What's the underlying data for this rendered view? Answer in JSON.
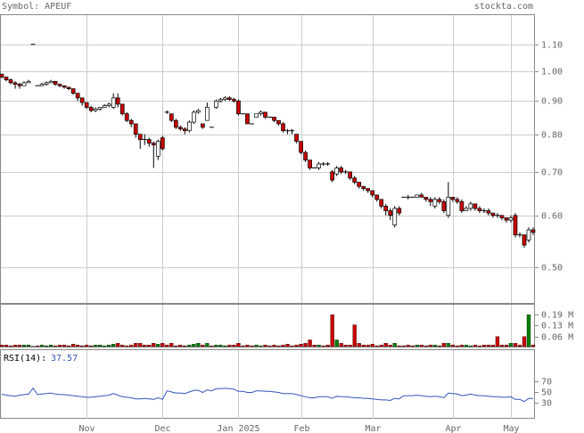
{
  "header": {
    "symbol": "Symbol: APEUF",
    "source": "stockta.com"
  },
  "chart_data": [
    {
      "type": "candlestick",
      "log": true,
      "grid": true,
      "up_color": "#ffffff",
      "down_color": "#cc0000",
      "ylim": [
        0.44,
        1.22
      ],
      "yticks": [
        {
          "value": 0.5,
          "label": "0.50"
        },
        {
          "value": 0.6,
          "label": "0.60"
        },
        {
          "value": 0.7,
          "label": "0.70"
        },
        {
          "value": 0.8,
          "label": "0.80"
        },
        {
          "value": 0.9,
          "label": "0.90"
        },
        {
          "value": 1.0,
          "label": "1.00"
        },
        {
          "value": 1.1,
          "label": "1.10"
        }
      ],
      "open": [
        0.99,
        0.98,
        0.97,
        0.96,
        0.955,
        0.95,
        0.96,
        1.1,
        0.95,
        0.95,
        0.955,
        0.96,
        0.965,
        0.955,
        0.95,
        0.945,
        0.94,
        0.925,
        0.91,
        0.895,
        0.88,
        0.87,
        0.875,
        0.88,
        0.885,
        0.88,
        0.91,
        0.89,
        0.86,
        0.84,
        0.83,
        0.8,
        0.785,
        0.785,
        0.775,
        0.74,
        0.79,
        0.865,
        0.86,
        0.84,
        0.82,
        0.815,
        0.81,
        0.835,
        0.865,
        0.83,
        0.84,
        0.82,
        0.88,
        0.9,
        0.905,
        0.91,
        0.905,
        0.9,
        0.86,
        0.86,
        0.83,
        0.85,
        0.86,
        0.865,
        0.85,
        0.85,
        0.84,
        0.83,
        0.81,
        0.81,
        0.8,
        0.78,
        0.75,
        0.73,
        0.71,
        0.71,
        0.72,
        0.72,
        0.7,
        0.695,
        0.71,
        0.7,
        0.7,
        0.685,
        0.675,
        0.665,
        0.66,
        0.655,
        0.645,
        0.635,
        0.62,
        0.61,
        0.58,
        0.615,
        0.64,
        0.64,
        0.64,
        0.64,
        0.645,
        0.64,
        0.635,
        0.62,
        0.635,
        0.63,
        0.6,
        0.64,
        0.635,
        0.63,
        0.61,
        0.615,
        0.625,
        0.615,
        0.61,
        0.61,
        0.605,
        0.6,
        0.6,
        0.595,
        0.59,
        0.6,
        0.56,
        0.56,
        0.55,
        0.57
      ],
      "high": [
        0.99,
        0.98,
        0.975,
        0.965,
        0.96,
        0.965,
        0.97,
        1.1,
        0.95,
        0.96,
        0.965,
        0.97,
        0.965,
        0.955,
        0.95,
        0.945,
        0.94,
        0.925,
        0.91,
        0.895,
        0.885,
        0.88,
        0.88,
        0.89,
        0.895,
        0.925,
        0.925,
        0.89,
        0.865,
        0.845,
        0.83,
        0.8,
        0.8,
        0.79,
        0.78,
        0.785,
        0.795,
        0.87,
        0.86,
        0.845,
        0.825,
        0.82,
        0.84,
        0.87,
        0.875,
        0.83,
        0.895,
        0.82,
        0.905,
        0.91,
        0.915,
        0.915,
        0.91,
        0.905,
        0.86,
        0.86,
        0.83,
        0.86,
        0.87,
        0.865,
        0.85,
        0.85,
        0.84,
        0.835,
        0.815,
        0.815,
        0.8,
        0.78,
        0.755,
        0.73,
        0.71,
        0.725,
        0.725,
        0.725,
        0.705,
        0.715,
        0.715,
        0.705,
        0.7,
        0.69,
        0.675,
        0.665,
        0.66,
        0.655,
        0.645,
        0.635,
        0.625,
        0.615,
        0.62,
        0.62,
        0.64,
        0.645,
        0.64,
        0.645,
        0.65,
        0.64,
        0.64,
        0.64,
        0.64,
        0.635,
        0.675,
        0.64,
        0.64,
        0.635,
        0.62,
        0.63,
        0.625,
        0.62,
        0.615,
        0.615,
        0.605,
        0.605,
        0.6,
        0.595,
        0.6,
        0.605,
        0.565,
        0.56,
        0.575,
        0.575
      ],
      "low": [
        0.975,
        0.965,
        0.955,
        0.94,
        0.94,
        0.95,
        0.96,
        1.1,
        0.95,
        0.95,
        0.95,
        0.96,
        0.95,
        0.945,
        0.94,
        0.935,
        0.92,
        0.9,
        0.885,
        0.875,
        0.865,
        0.865,
        0.87,
        0.88,
        0.88,
        0.875,
        0.88,
        0.855,
        0.835,
        0.82,
        0.79,
        0.76,
        0.77,
        0.765,
        0.71,
        0.73,
        0.755,
        0.86,
        0.835,
        0.815,
        0.81,
        0.8,
        0.805,
        0.83,
        0.86,
        0.815,
        0.84,
        0.82,
        0.875,
        0.895,
        0.9,
        0.9,
        0.895,
        0.855,
        0.86,
        0.83,
        0.83,
        0.85,
        0.855,
        0.845,
        0.85,
        0.835,
        0.825,
        0.805,
        0.8,
        0.8,
        0.775,
        0.745,
        0.725,
        0.705,
        0.71,
        0.705,
        0.715,
        0.715,
        0.675,
        0.69,
        0.695,
        0.695,
        0.68,
        0.67,
        0.66,
        0.655,
        0.65,
        0.64,
        0.63,
        0.615,
        0.6,
        0.59,
        0.575,
        0.6,
        0.64,
        0.635,
        0.64,
        0.64,
        0.64,
        0.63,
        0.62,
        0.615,
        0.625,
        0.605,
        0.595,
        0.63,
        0.625,
        0.605,
        0.61,
        0.61,
        0.61,
        0.605,
        0.605,
        0.6,
        0.595,
        0.595,
        0.59,
        0.585,
        0.585,
        0.555,
        0.555,
        0.535,
        0.545,
        0.56
      ],
      "close": [
        0.98,
        0.97,
        0.96,
        0.955,
        0.95,
        0.96,
        0.965,
        1.1,
        0.95,
        0.955,
        0.96,
        0.965,
        0.955,
        0.95,
        0.945,
        0.94,
        0.925,
        0.91,
        0.895,
        0.88,
        0.87,
        0.875,
        0.88,
        0.885,
        0.89,
        0.91,
        0.89,
        0.86,
        0.84,
        0.83,
        0.8,
        0.785,
        0.785,
        0.775,
        0.77,
        0.78,
        0.76,
        0.865,
        0.84,
        0.82,
        0.815,
        0.81,
        0.835,
        0.865,
        0.87,
        0.82,
        0.88,
        0.82,
        0.9,
        0.905,
        0.91,
        0.905,
        0.9,
        0.86,
        0.86,
        0.83,
        0.83,
        0.86,
        0.865,
        0.85,
        0.85,
        0.84,
        0.83,
        0.81,
        0.81,
        0.81,
        0.78,
        0.75,
        0.73,
        0.71,
        0.71,
        0.72,
        0.72,
        0.72,
        0.68,
        0.71,
        0.7,
        0.7,
        0.685,
        0.675,
        0.665,
        0.66,
        0.655,
        0.645,
        0.635,
        0.62,
        0.61,
        0.6,
        0.615,
        0.605,
        0.64,
        0.64,
        0.64,
        0.645,
        0.64,
        0.635,
        0.63,
        0.635,
        0.63,
        0.61,
        0.64,
        0.635,
        0.63,
        0.61,
        0.615,
        0.625,
        0.615,
        0.61,
        0.61,
        0.605,
        0.6,
        0.6,
        0.595,
        0.59,
        0.595,
        0.56,
        0.56,
        0.54,
        0.57,
        0.565
      ]
    },
    {
      "type": "bar",
      "up_color": "#008000",
      "down_color": "#cc0000",
      "ylim": [
        0,
        0.25
      ],
      "yticks": [
        {
          "value": 0.06,
          "label": "0.06 M"
        },
        {
          "value": 0.13,
          "label": "0.13 M"
        },
        {
          "value": 0.19,
          "label": "0.19 M"
        }
      ],
      "values": [
        0.01,
        0.01,
        0.005,
        0.01,
        0.01,
        0.01,
        0.01,
        0.002,
        0.005,
        0.01,
        0.005,
        0.01,
        0.005,
        0.01,
        0.01,
        0.005,
        0.015,
        0.01,
        0.005,
        0.01,
        0.005,
        0.01,
        0.01,
        0.005,
        0.01,
        0.015,
        0.02,
        0.01,
        0.005,
        0.01,
        0.02,
        0.02,
        0.01,
        0.01,
        0.02,
        0.015,
        0.02,
        0.01,
        0.02,
        0.005,
        0.01,
        0.005,
        0.01,
        0.015,
        0.02,
        0.01,
        0.02,
        0.005,
        0.01,
        0.01,
        0.005,
        0.01,
        0.01,
        0.02,
        0.005,
        0.01,
        0.005,
        0.01,
        0.005,
        0.01,
        0.005,
        0.01,
        0.005,
        0.01,
        0.015,
        0.005,
        0.01,
        0.015,
        0.02,
        0.04,
        0.01,
        0.01,
        0.005,
        0.01,
        0.19,
        0.04,
        0.02,
        0.01,
        0.01,
        0.13,
        0.02,
        0.01,
        0.01,
        0.015,
        0.005,
        0.01,
        0.02,
        0.01,
        0.02,
        0.005,
        0.005,
        0.01,
        0.005,
        0.01,
        0.01,
        0.005,
        0.01,
        0.01,
        0.005,
        0.02,
        0.02,
        0.01,
        0.005,
        0.01,
        0.01,
        0.005,
        0.01,
        0.005,
        0.01,
        0.01,
        0.01,
        0.06,
        0.01,
        0.01,
        0.02,
        0.02,
        0.01,
        0.06,
        0.19,
        0.01
      ]
    },
    {
      "type": "line",
      "label": "RSI(14):",
      "color": "#3355bb",
      "ylim": [
        0,
        128
      ],
      "yticks": [
        30,
        50,
        70
      ],
      "values": [
        46,
        44,
        43,
        42,
        44,
        45,
        46,
        57,
        45,
        46,
        47,
        48,
        46,
        45,
        45,
        44,
        43,
        42,
        41,
        40,
        40,
        41,
        42,
        43,
        44,
        47,
        44,
        41,
        40,
        39,
        37,
        37,
        38,
        37,
        36,
        39,
        36,
        52,
        50,
        48,
        48,
        47,
        50,
        53,
        53,
        49,
        54,
        52,
        56,
        56,
        57,
        56,
        55,
        51,
        51,
        49,
        49,
        52,
        52,
        51,
        51,
        50,
        49,
        47,
        47,
        47,
        45,
        43,
        41,
        39,
        39,
        41,
        41,
        41,
        38,
        42,
        41,
        41,
        40,
        39,
        39,
        38,
        38,
        37,
        36,
        35,
        35,
        34,
        38,
        37,
        43,
        43,
        43,
        44,
        43,
        42,
        41,
        42,
        41,
        39,
        48,
        47,
        46,
        43,
        44,
        46,
        44,
        43,
        43,
        42,
        41,
        41,
        40,
        40,
        41,
        36,
        36,
        32,
        38,
        37.57
      ],
      "categories": [
        null,
        null,
        null,
        null,
        null,
        null,
        null,
        null,
        null,
        null,
        null,
        null,
        null,
        null,
        null,
        null,
        null,
        null,
        null,
        "Nov",
        null,
        null,
        null,
        null,
        null,
        null,
        null,
        null,
        null,
        null,
        null,
        null,
        null,
        null,
        null,
        null,
        "Dec",
        null,
        null,
        null,
        null,
        null,
        null,
        null,
        null,
        null,
        null,
        null,
        null,
        null,
        null,
        null,
        null,
        "Jan 2025",
        null,
        null,
        null,
        null,
        null,
        null,
        null,
        null,
        null,
        null,
        null,
        null,
        null,
        "Feb",
        null,
        null,
        null,
        null,
        null,
        null,
        null,
        null,
        null,
        null,
        null,
        null,
        null,
        null,
        null,
        "Mar",
        null,
        null,
        null,
        null,
        null,
        null,
        null,
        null,
        null,
        null,
        null,
        null,
        null,
        null,
        null,
        null,
        null,
        "Apr",
        null,
        null,
        null,
        null,
        null,
        null,
        null,
        null,
        null,
        null,
        null,
        null,
        "May",
        null,
        null,
        null,
        null,
        null
      ]
    }
  ]
}
